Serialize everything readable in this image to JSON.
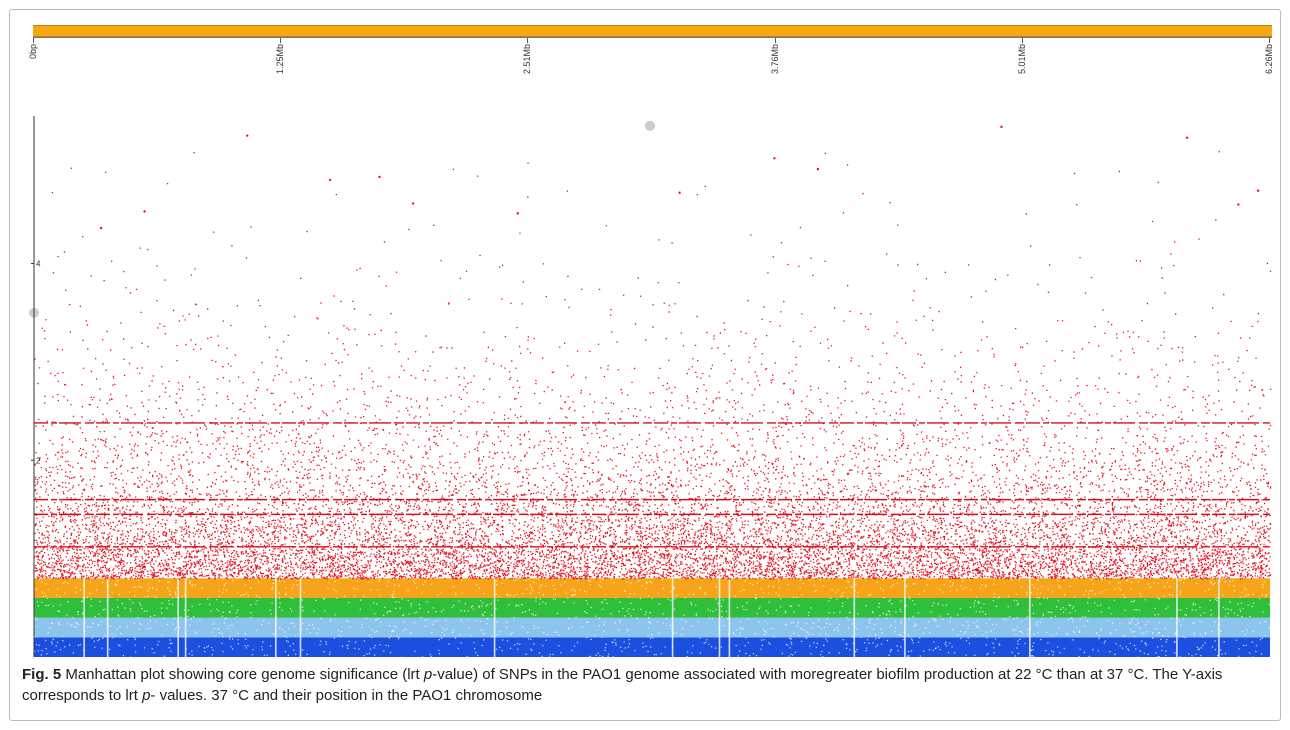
{
  "chart_data": {
    "type": "scatter",
    "title": "",
    "xlabel": "",
    "ylabel": "",
    "x_ticks": [
      "0bp",
      "1.25Mb",
      "2.51Mb",
      "3.76Mb",
      "5.01Mb",
      "6.26Mb"
    ],
    "y_ticks": [
      "2",
      "4"
    ],
    "xlim": [
      0,
      6.26
    ],
    "ylim": [
      0,
      5.5
    ],
    "x_unit": "Mb",
    "grid": false,
    "legend": "none",
    "bands": [
      {
        "range": [
          0.0,
          0.2
        ],
        "color": "#1a4fe0"
      },
      {
        "range": [
          0.2,
          0.4
        ],
        "color": "#8cc4ee"
      },
      {
        "range": [
          0.4,
          0.6
        ],
        "color": "#2fbf3a"
      },
      {
        "range": [
          0.6,
          0.8
        ],
        "color": "#f6a51a"
      }
    ],
    "significant_color": "#e8111f",
    "horizontal_lines_y": [
      2.38,
      1.6,
      1.45,
      1.12
    ],
    "highlighted_points": [
      {
        "x": 3.12,
        "y": 5.4,
        "color": "#cccccc"
      },
      {
        "x": 0.0,
        "y": 3.5,
        "color": "#cccccc"
      }
    ],
    "top_points": [
      {
        "x": 1.08,
        "y": 5.3
      },
      {
        "x": 1.5,
        "y": 4.85
      },
      {
        "x": 1.75,
        "y": 4.88
      },
      {
        "x": 3.75,
        "y": 5.07
      },
      {
        "x": 3.97,
        "y": 4.96
      },
      {
        "x": 4.9,
        "y": 5.39
      },
      {
        "x": 5.84,
        "y": 5.28
      },
      {
        "x": 6.2,
        "y": 4.74
      },
      {
        "x": 0.34,
        "y": 4.36
      },
      {
        "x": 2.45,
        "y": 4.51
      },
      {
        "x": 6.1,
        "y": 4.6
      },
      {
        "x": 3.27,
        "y": 4.72
      },
      {
        "x": 1.92,
        "y": 4.61
      },
      {
        "x": 0.56,
        "y": 4.53
      }
    ]
  },
  "caption": {
    "fig_label": "Fig. 5",
    "part1": " Manhattan plot showing core genome significance (lrt ",
    "italic1": "p",
    "part2": "-value) of SNPs in the PAO1 genome associated with moregreater biofilm production at 22 °C than at 37 °C. The Y-axis corresponds to lrt ",
    "italic2": "p",
    "part3": "- values. 37 °C and their position in the PAO1 chromosome"
  }
}
